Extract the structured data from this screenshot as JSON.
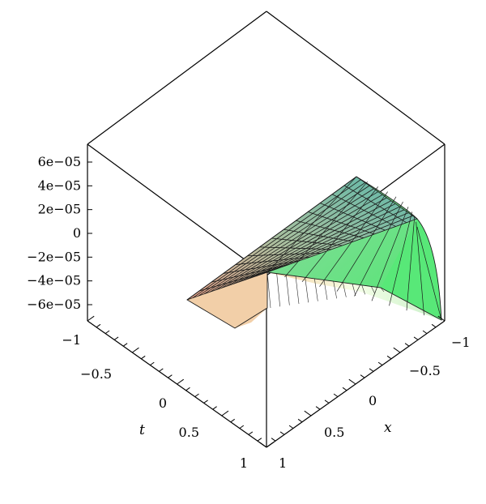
{
  "chart_data": {
    "type": "surface3d",
    "title": "",
    "axes": {
      "x": {
        "label": "x",
        "ticks": [
          "-1",
          "-0.5",
          "0",
          "0.5",
          "1"
        ],
        "range": [
          -1,
          1
        ]
      },
      "t": {
        "label": "t",
        "ticks": [
          "-1",
          "-0.5",
          "0",
          "0.5",
          "1"
        ],
        "range": [
          -1,
          1
        ]
      },
      "z": {
        "label": "",
        "ticks": [
          "6e−05",
          "4e−05",
          "2e−05",
          "0",
          "−2e−05",
          "−4e−05",
          "−6e−05"
        ],
        "range": [
          -6e-05,
          6e-05
        ]
      }
    },
    "surface": {
      "description_colors": {
        "low_t_high_x": "#f0a890",
        "high_t_low_x": "#6cc0a8",
        "front_corner": "#5ce87a",
        "ridge": "#f4ffe4"
      },
      "mesh": "black gridlines"
    },
    "boxed": true
  }
}
